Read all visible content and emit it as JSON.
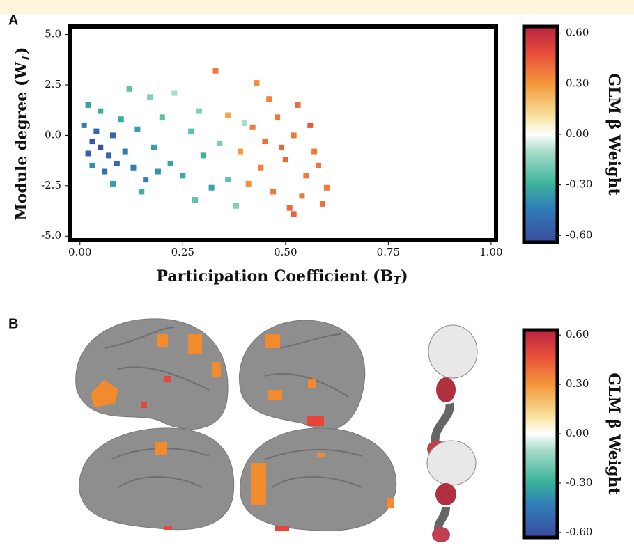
{
  "chart_data": [
    {
      "panel": "A",
      "type": "scatter",
      "xlabel": {
        "text": "Participation Coefficient (B",
        "sub": "T",
        "end": ")"
      },
      "ylabel": {
        "text": "Module degree (W",
        "sub": "T",
        "end": ")"
      },
      "xlim": [
        -0.025,
        1.012
      ],
      "ylim": [
        -5.2,
        5.4
      ],
      "xticks": [
        {
          "value": 0,
          "label": "0.00"
        },
        {
          "value": 0.25,
          "label": "0.25"
        },
        {
          "value": 0.5,
          "label": "0.50"
        },
        {
          "value": 0.75,
          "label": "0.75"
        },
        {
          "value": 1,
          "label": "1.00"
        }
      ],
      "yticks": [
        {
          "value": 5,
          "label": "5.0"
        },
        2.5,
        {
          "value": 0,
          "label": "0.0"
        },
        -2.5,
        {
          "value": -5,
          "label": "-5.0"
        }
      ],
      "x": [
        0.03,
        0.05,
        0.07,
        0.04,
        0.09,
        0.11,
        0.06,
        0.02,
        0.08,
        0.13,
        0.16,
        0.01,
        0.02,
        0.05,
        0.1,
        0.14,
        0.18,
        0.2,
        0.22,
        0.25,
        0.27,
        0.3,
        0.32,
        0.34,
        0.36,
        0.12,
        0.17,
        0.23,
        0.08,
        0.15,
        0.28,
        0.38,
        0.4,
        0.19,
        0.29,
        0.03,
        0.42,
        0.45,
        0.48,
        0.5,
        0.52,
        0.55,
        0.44,
        0.47,
        0.53,
        0.57,
        0.59,
        0.51,
        0.46,
        0.41,
        0.56,
        0.58,
        0.54,
        0.43,
        0.49,
        0.36,
        0.39,
        0.6,
        0.33,
        0.52
      ],
      "y": [
        -0.3,
        -0.6,
        -1.0,
        0.2,
        -1.4,
        -0.8,
        -1.8,
        -0.9,
        0.0,
        -1.6,
        -2.2,
        0.5,
        1.5,
        1.2,
        0.8,
        0.3,
        -0.6,
        0.9,
        -1.4,
        -2.0,
        0.2,
        -1.0,
        -2.6,
        -0.4,
        -2.2,
        2.3,
        1.9,
        2.1,
        -2.4,
        -2.8,
        -3.2,
        -3.5,
        0.6,
        -1.8,
        1.2,
        -1.5,
        0.4,
        -0.3,
        0.9,
        -1.2,
        0.0,
        -2.0,
        -1.6,
        -2.8,
        1.5,
        -0.8,
        -3.4,
        -3.6,
        1.8,
        -2.4,
        0.5,
        -1.5,
        -3.0,
        2.6,
        -0.6,
        1.0,
        -0.8,
        -2.6,
        3.2,
        -3.9
      ],
      "values": [
        -0.55,
        -0.58,
        -0.5,
        -0.5,
        -0.48,
        -0.45,
        -0.45,
        -0.52,
        -0.5,
        -0.42,
        -0.4,
        -0.4,
        -0.3,
        -0.25,
        -0.28,
        -0.3,
        -0.3,
        -0.2,
        -0.3,
        -0.28,
        -0.2,
        -0.25,
        -0.3,
        -0.15,
        -0.2,
        -0.2,
        -0.15,
        -0.1,
        -0.3,
        -0.25,
        -0.2,
        -0.15,
        -0.1,
        -0.35,
        -0.15,
        -0.35,
        0.3,
        0.32,
        0.3,
        0.35,
        0.3,
        0.3,
        0.28,
        0.3,
        0.33,
        0.3,
        0.32,
        0.35,
        0.28,
        0.25,
        0.38,
        0.3,
        0.3,
        0.25,
        0.35,
        0.2,
        0.22,
        0.3,
        0.3,
        0.36
      ],
      "colorbar": {
        "label": "GLM β Weight",
        "lim": [
          -0.64,
          0.64
        ],
        "ticks": [
          {
            "value": 0.6,
            "label": "0.60"
          },
          {
            "value": 0.3,
            "label": "0.30"
          },
          {
            "value": 0,
            "label": "0.00"
          },
          {
            "value": -0.3,
            "label": "-0.30"
          },
          {
            "value": -0.6,
            "label": "-0.60"
          }
        ]
      }
    },
    {
      "panel": "B",
      "type": "brain-map",
      "colorbar": {
        "label": "GLM β Weight",
        "lim": [
          -0.63,
          0.63
        ],
        "ticks": [
          {
            "value": 0.6,
            "label": "0.60"
          },
          {
            "value": 0.3,
            "label": "0.30"
          },
          {
            "value": 0,
            "label": "0.00"
          },
          {
            "value": -0.3,
            "label": "-0.30"
          },
          {
            "value": -0.6,
            "label": "-0.60"
          }
        ]
      }
    }
  ]
}
